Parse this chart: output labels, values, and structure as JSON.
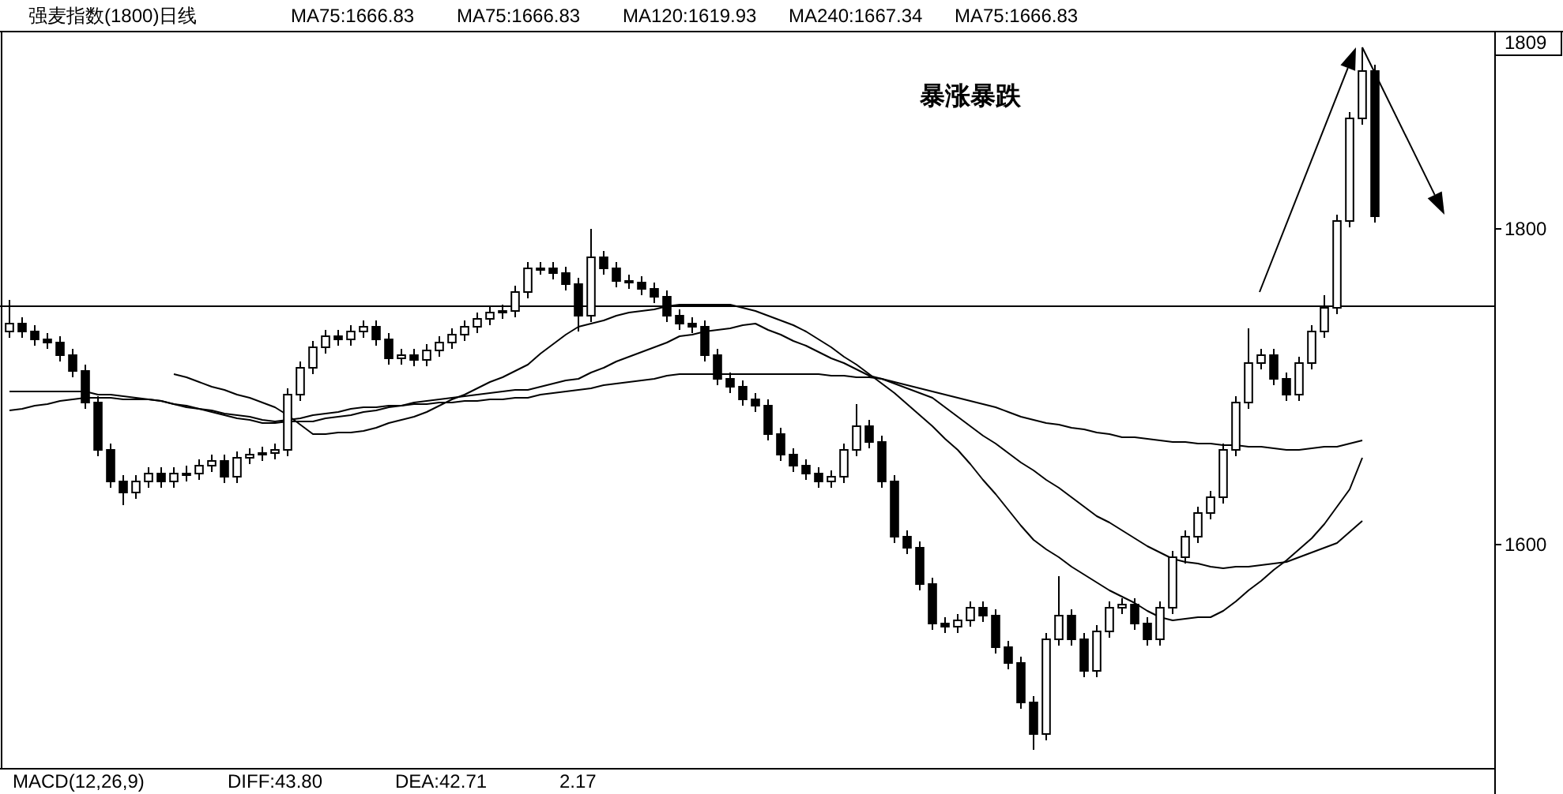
{
  "chart_data": {
    "type": "candlestick",
    "title": "强麦指数(1800)日线",
    "annotations": [
      "MA75:1666.83",
      "MA75:1666.83",
      "MA120:1619.93",
      "MA240:1667.34",
      "MA75:1666.83",
      "暴涨暴跌",
      "1809",
      "MACD(12,26,9)",
      "DIFF:43.80",
      "DEA:42.71",
      "2.17"
    ],
    "color": "#000000",
    "categories": [
      null,
      null,
      null,
      null,
      null,
      null,
      null,
      null,
      null,
      null,
      null,
      null,
      null,
      null,
      null,
      null,
      null,
      null,
      null,
      null,
      null,
      null,
      null,
      null,
      null,
      null,
      null,
      null,
      null,
      null,
      null,
      null,
      null,
      null,
      null,
      null,
      null,
      null,
      null,
      null,
      null,
      null,
      null,
      null,
      null,
      null,
      null,
      null,
      null,
      null,
      null,
      null,
      null,
      null,
      null,
      null,
      null,
      null,
      null,
      null,
      null,
      null,
      null,
      null,
      null,
      null,
      null,
      null,
      null,
      null,
      null,
      null,
      null,
      null,
      null,
      null,
      null,
      null,
      null,
      null,
      null,
      null,
      null,
      null,
      null,
      null,
      null,
      null,
      null,
      null,
      null,
      null,
      null,
      null,
      null,
      null,
      null,
      null,
      null,
      null,
      null,
      null,
      null,
      null,
      null,
      null,
      null,
      null,
      null,
      null,
      null,
      null,
      null,
      null,
      null,
      null,
      null,
      null
    ],
    "ohlc": [
      [
        1735,
        1755,
        1731,
        1740
      ],
      [
        1740,
        1744,
        1731,
        1735
      ],
      [
        1735,
        1739,
        1726,
        1730
      ],
      [
        1730,
        1734,
        1724,
        1728
      ],
      [
        1728,
        1732,
        1716,
        1720
      ],
      [
        1720,
        1724,
        1706,
        1710
      ],
      [
        1710,
        1714,
        1686,
        1690
      ],
      [
        1690,
        1694,
        1656,
        1660
      ],
      [
        1660,
        1664,
        1636,
        1640
      ],
      [
        1640,
        1644,
        1625,
        1633
      ],
      [
        1633,
        1644,
        1629,
        1640
      ],
      [
        1640,
        1649,
        1636,
        1645
      ],
      [
        1645,
        1649,
        1636,
        1640
      ],
      [
        1640,
        1649,
        1636,
        1645
      ],
      [
        1645,
        1650,
        1640,
        1645
      ],
      [
        1645,
        1654,
        1641,
        1650
      ],
      [
        1650,
        1657,
        1646,
        1653
      ],
      [
        1653,
        1657,
        1639,
        1643
      ],
      [
        1643,
        1659,
        1639,
        1655
      ],
      [
        1655,
        1661,
        1651,
        1657
      ],
      [
        1657,
        1662,
        1653,
        1658
      ],
      [
        1658,
        1664,
        1654,
        1660
      ],
      [
        1660,
        1699,
        1656,
        1695
      ],
      [
        1695,
        1716,
        1691,
        1712
      ],
      [
        1712,
        1729,
        1708,
        1725
      ],
      [
        1725,
        1736,
        1721,
        1732
      ],
      [
        1732,
        1736,
        1726,
        1730
      ],
      [
        1730,
        1739,
        1726,
        1735
      ],
      [
        1735,
        1742,
        1731,
        1738
      ],
      [
        1738,
        1742,
        1726,
        1730
      ],
      [
        1730,
        1734,
        1714,
        1718
      ],
      [
        1718,
        1724,
        1714,
        1720
      ],
      [
        1720,
        1724,
        1713,
        1717
      ],
      [
        1717,
        1727,
        1713,
        1723
      ],
      [
        1723,
        1732,
        1719,
        1728
      ],
      [
        1728,
        1737,
        1724,
        1733
      ],
      [
        1733,
        1742,
        1729,
        1738
      ],
      [
        1738,
        1747,
        1734,
        1743
      ],
      [
        1743,
        1751,
        1739,
        1747
      ],
      [
        1747,
        1752,
        1743,
        1748
      ],
      [
        1748,
        1764,
        1744,
        1760
      ],
      [
        1760,
        1779,
        1756,
        1775
      ],
      [
        1775,
        1779,
        1771,
        1775
      ],
      [
        1775,
        1779,
        1768,
        1772
      ],
      [
        1772,
        1776,
        1761,
        1765
      ],
      [
        1765,
        1769,
        1735,
        1745
      ],
      [
        1745,
        1800,
        1741,
        1782
      ],
      [
        1782,
        1786,
        1771,
        1775
      ],
      [
        1775,
        1779,
        1763,
        1767
      ],
      [
        1767,
        1771,
        1762,
        1766
      ],
      [
        1766,
        1770,
        1758,
        1762
      ],
      [
        1762,
        1766,
        1753,
        1757
      ],
      [
        1757,
        1761,
        1741,
        1745
      ],
      [
        1745,
        1749,
        1736,
        1740
      ],
      [
        1740,
        1744,
        1734,
        1738
      ],
      [
        1738,
        1742,
        1716,
        1720
      ],
      [
        1720,
        1724,
        1701,
        1705
      ],
      [
        1705,
        1709,
        1696,
        1700
      ],
      [
        1700,
        1704,
        1688,
        1692
      ],
      [
        1692,
        1696,
        1684,
        1688
      ],
      [
        1688,
        1692,
        1666,
        1670
      ],
      [
        1670,
        1674,
        1653,
        1657
      ],
      [
        1657,
        1661,
        1646,
        1650
      ],
      [
        1650,
        1654,
        1641,
        1645
      ],
      [
        1645,
        1649,
        1636,
        1640
      ],
      [
        1640,
        1647,
        1636,
        1643
      ],
      [
        1643,
        1664,
        1639,
        1660
      ],
      [
        1660,
        1689,
        1656,
        1675
      ],
      [
        1675,
        1679,
        1661,
        1665
      ],
      [
        1665,
        1669,
        1636,
        1640
      ],
      [
        1640,
        1644,
        1601,
        1605
      ],
      [
        1605,
        1609,
        1594,
        1598
      ],
      [
        1598,
        1602,
        1571,
        1575
      ],
      [
        1575,
        1579,
        1546,
        1550
      ],
      [
        1550,
        1554,
        1544,
        1548
      ],
      [
        1548,
        1556,
        1544,
        1552
      ],
      [
        1552,
        1564,
        1548,
        1560
      ],
      [
        1560,
        1564,
        1551,
        1555
      ],
      [
        1555,
        1559,
        1531,
        1535
      ],
      [
        1535,
        1539,
        1521,
        1525
      ],
      [
        1525,
        1529,
        1496,
        1500
      ],
      [
        1500,
        1504,
        1470,
        1480
      ],
      [
        1480,
        1544,
        1476,
        1540
      ],
      [
        1540,
        1580,
        1536,
        1555
      ],
      [
        1555,
        1559,
        1536,
        1540
      ],
      [
        1540,
        1544,
        1516,
        1520
      ],
      [
        1520,
        1549,
        1516,
        1545
      ],
      [
        1545,
        1564,
        1541,
        1560
      ],
      [
        1560,
        1566,
        1556,
        1562
      ],
      [
        1562,
        1566,
        1546,
        1550
      ],
      [
        1550,
        1554,
        1536,
        1540
      ],
      [
        1540,
        1564,
        1536,
        1560
      ],
      [
        1560,
        1596,
        1556,
        1592
      ],
      [
        1592,
        1609,
        1588,
        1605
      ],
      [
        1605,
        1624,
        1601,
        1620
      ],
      [
        1620,
        1634,
        1616,
        1630
      ],
      [
        1630,
        1664,
        1626,
        1660
      ],
      [
        1660,
        1694,
        1656,
        1690
      ],
      [
        1690,
        1737,
        1686,
        1715
      ],
      [
        1715,
        1724,
        1711,
        1720
      ],
      [
        1720,
        1724,
        1701,
        1705
      ],
      [
        1705,
        1709,
        1691,
        1695
      ],
      [
        1695,
        1719,
        1691,
        1715
      ],
      [
        1715,
        1739,
        1711,
        1735
      ],
      [
        1735,
        1758,
        1731,
        1750
      ],
      [
        1750,
        1809,
        1746,
        1805
      ],
      [
        1805,
        1874,
        1801,
        1870
      ],
      [
        1870,
        1915,
        1866,
        1900
      ],
      [
        1900,
        1904,
        1804,
        1808
      ],
      null,
      null,
      null,
      null,
      null,
      null,
      null,
      null,
      null
    ],
    "series": [
      {
        "type": "line",
        "color": "#000000",
        "values": [
          1697,
          1697,
          1697,
          1697,
          1697,
          1697,
          1697,
          1695,
          1695,
          1694,
          1693,
          1692,
          1691,
          1689,
          1688,
          1686,
          1685,
          1683,
          1682,
          1681,
          1679,
          1678,
          1679,
          1680,
          1682,
          1683,
          1684,
          1686,
          1687,
          1687,
          1688,
          1688,
          1689,
          1689,
          1690,
          1690,
          1691,
          1691,
          1692,
          1692,
          1693,
          1693,
          1695,
          1696,
          1697,
          1698,
          1699,
          1701,
          1702,
          1703,
          1704,
          1705,
          1707,
          1708,
          1708,
          1708,
          1708,
          1708,
          1708,
          1708,
          1708,
          1708,
          1708,
          1708,
          1708,
          1707,
          1707,
          1706,
          1706,
          1705,
          1703,
          1701,
          1699,
          1697,
          1695,
          1693,
          1691,
          1689,
          1687,
          1684,
          1681,
          1679,
          1677,
          1676,
          1674,
          1673,
          1671,
          1670,
          1668,
          1668,
          1667,
          1666,
          1665,
          1665,
          1664,
          1664,
          1663,
          1663,
          1662,
          1662,
          1661,
          1660,
          1660,
          1661,
          1662,
          1662,
          1664,
          1666,
          null,
          null,
          null,
          null,
          null,
          null,
          null,
          null,
          null,
          null
        ]
      },
      {
        "type": "line",
        "color": "#000000",
        "values": [
          1685,
          1686,
          1688,
          1689,
          1691,
          1692,
          1693,
          1693,
          1693,
          1692,
          1692,
          1692,
          1691,
          1689,
          1687,
          1686,
          1684,
          1682,
          1680,
          1679,
          1677,
          1677,
          1678,
          1678,
          1678,
          1680,
          1681,
          1682,
          1684,
          1685,
          1687,
          1688,
          1690,
          1691,
          1692,
          1693,
          1694,
          1695,
          1696,
          1697,
          1698,
          1698,
          1700,
          1702,
          1704,
          1705,
          1709,
          1712,
          1716,
          1719,
          1722,
          1725,
          1728,
          1732,
          1733,
          1735,
          1736,
          1737,
          1739,
          1740,
          1736,
          1733,
          1729,
          1726,
          1722,
          1718,
          1715,
          1711,
          1707,
          1705,
          1702,
          1699,
          1696,
          1693,
          1687,
          1681,
          1675,
          1669,
          1664,
          1658,
          1652,
          1647,
          1641,
          1636,
          1630,
          1624,
          1618,
          1614,
          1609,
          1604,
          1599,
          1595,
          1591,
          1589,
          1588,
          1586,
          1585,
          1586,
          1586,
          1587,
          1588,
          1589,
          1592,
          1595,
          1598,
          1601,
          1608,
          1615,
          null,
          null,
          null,
          null,
          null,
          null,
          null,
          null,
          null,
          null
        ]
      },
      {
        "type": "line",
        "color": "#000000",
        "values": [
          null,
          null,
          null,
          null,
          null,
          null,
          null,
          null,
          null,
          null,
          null,
          null,
          null,
          1708,
          1706,
          1703,
          1700,
          1698,
          1695,
          1693,
          1690,
          1687,
          1682,
          1676,
          1670,
          1670,
          1671,
          1671,
          1672,
          1674,
          1677,
          1679,
          1681,
          1684,
          1688,
          1692,
          1695,
          1699,
          1703,
          1706,
          1710,
          1714,
          1721,
          1727,
          1733,
          1738,
          1740,
          1742,
          1745,
          1747,
          1748,
          1749,
          1751,
          1752,
          1752,
          1752,
          1752,
          1752,
          1750,
          1748,
          1745,
          1742,
          1739,
          1735,
          1730,
          1725,
          1719,
          1714,
          1708,
          1702,
          1696,
          1689,
          1682,
          1675,
          1667,
          1660,
          1651,
          1641,
          1632,
          1622,
          1612,
          1603,
          1597,
          1592,
          1586,
          1581,
          1576,
          1571,
          1567,
          1563,
          1558,
          1554,
          1552,
          1553,
          1554,
          1554,
          1558,
          1564,
          1571,
          1577,
          1584,
          1590,
          1597,
          1604,
          1613,
          1624,
          1635,
          1655,
          null,
          null,
          null,
          null,
          null,
          null,
          null,
          null,
          null,
          null
        ]
      }
    ],
    "ylim": [
      1458,
      1925
    ],
    "yticks": [
      1600,
      1800
    ],
    "ref_lines": [
      {
        "axis": "y",
        "value": 1751
      }
    ],
    "tick_labels": "y"
  }
}
